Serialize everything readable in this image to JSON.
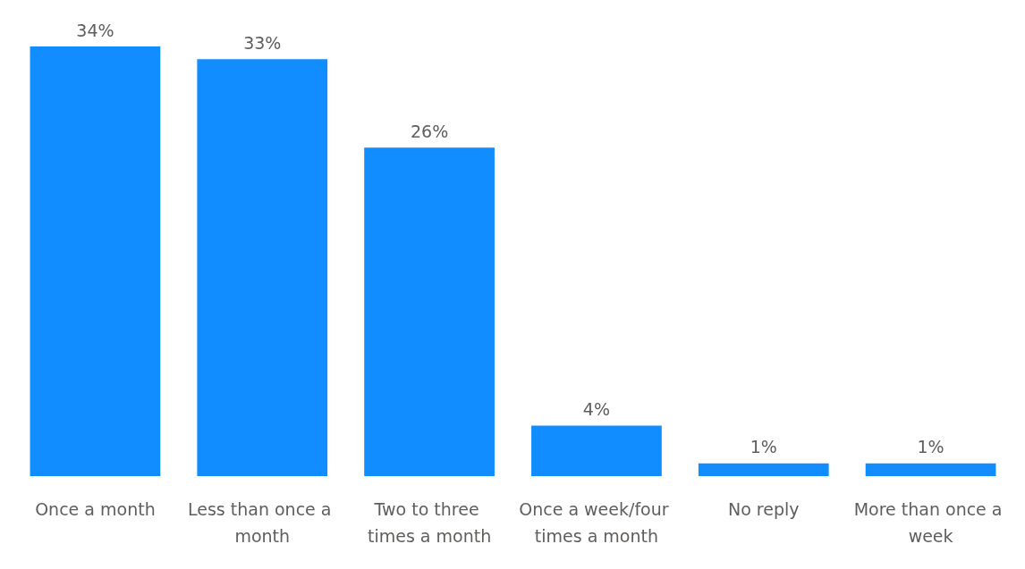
{
  "chart_data": {
    "type": "bar",
    "categories": [
      "Once a month",
      "Less than once a month",
      "Two to three times a month",
      "Once a week/four times a month",
      "No reply",
      "More than once a week"
    ],
    "values": [
      34,
      33,
      26,
      4,
      1,
      1
    ],
    "value_labels": [
      "34%",
      "33%",
      "26%",
      "4%",
      "1%",
      "1%"
    ],
    "color": "#118dff"
  }
}
